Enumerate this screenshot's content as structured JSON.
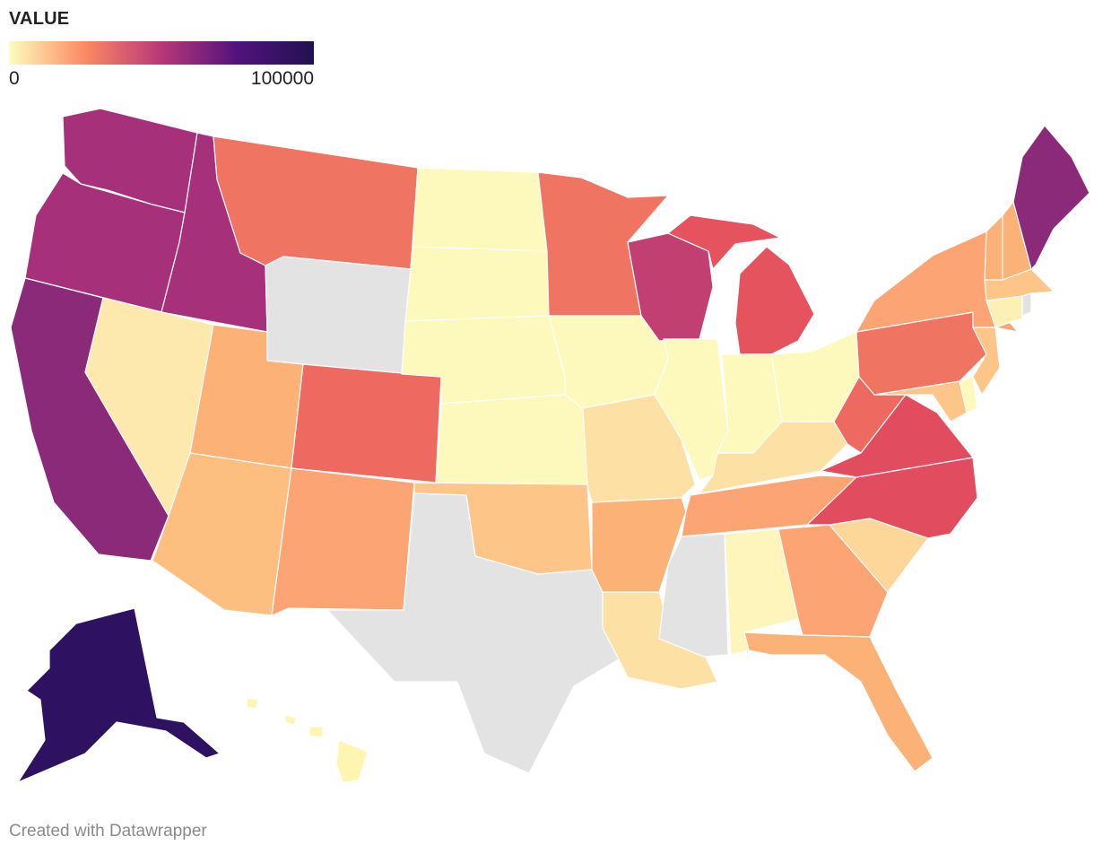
{
  "legend": {
    "title": "VALUE",
    "min_label": "0",
    "max_label": "100000",
    "color_stops": [
      "#fcfdbf",
      "#fc8961",
      "#b73779",
      "#51127c",
      "#221150"
    ],
    "no_data_color": "#e3e3e3"
  },
  "footer": {
    "credit": "Created with Datawrapper"
  },
  "map_data": {
    "type": "choropleth",
    "region": "USA states",
    "scale": [
      0,
      100000
    ],
    "states": {
      "WA": {
        "color": "#a6317a"
      },
      "OR": {
        "color": "#a6317a"
      },
      "CA": {
        "color": "#8c2a7a"
      },
      "ID": {
        "color": "#a6317a"
      },
      "NV": {
        "color": "#fde8ae"
      },
      "MT": {
        "color": "#f07462"
      },
      "WY": {
        "color": "#e3e3e3"
      },
      "UT": {
        "color": "#fcb177"
      },
      "AZ": {
        "color": "#fdbf7f"
      },
      "CO": {
        "color": "#ee6a60"
      },
      "NM": {
        "color": "#fca473"
      },
      "ND": {
        "color": "#fdf9bd"
      },
      "SD": {
        "color": "#fdf9bd"
      },
      "NE": {
        "color": "#fdf9bd"
      },
      "KS": {
        "color": "#fdf9bd"
      },
      "OK": {
        "color": "#fdc587"
      },
      "TX": {
        "color": "#e3e3e3"
      },
      "MN": {
        "color": "#f07462"
      },
      "IA": {
        "color": "#fdf9bd"
      },
      "MO": {
        "color": "#fde0a4"
      },
      "AR": {
        "color": "#fcb177"
      },
      "LA": {
        "color": "#fde0a4"
      },
      "WI": {
        "color": "#c23f72"
      },
      "IL": {
        "color": "#fdf9bd"
      },
      "MI": {
        "color": "#e5535f"
      },
      "IN": {
        "color": "#fdf9bd"
      },
      "OH": {
        "color": "#fdf9bd"
      },
      "KY": {
        "color": "#fde0a4"
      },
      "TN": {
        "color": "#fca473"
      },
      "MS": {
        "color": "#e3e3e3"
      },
      "AL": {
        "color": "#fdf5bb"
      },
      "GA": {
        "color": "#fca473"
      },
      "FL": {
        "color": "#fcb177"
      },
      "SC": {
        "color": "#fdd79a"
      },
      "NC": {
        "color": "#e14d5e"
      },
      "VA": {
        "color": "#e14d5e"
      },
      "WV": {
        "color": "#ee6a60"
      },
      "PA": {
        "color": "#f07462"
      },
      "NY": {
        "color": "#fca473"
      },
      "VT": {
        "color": "#fcb177"
      },
      "NH": {
        "color": "#fcb177"
      },
      "ME": {
        "color": "#8c2a7a"
      },
      "MA": {
        "color": "#fdc587"
      },
      "CT": {
        "color": "#fdf0b5"
      },
      "RI": {
        "color": "#e3e3e3"
      },
      "NJ": {
        "color": "#fdc587"
      },
      "DE": {
        "color": "#fdf9bd"
      },
      "MD": {
        "color": "#fdc587"
      },
      "AK": {
        "color": "#2e1160"
      },
      "HI": {
        "color": "#fdf5b0"
      }
    }
  }
}
